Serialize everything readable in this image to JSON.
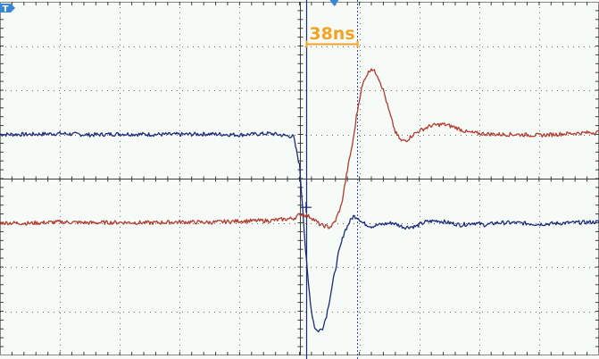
{
  "chart_data": {
    "type": "line",
    "title": "",
    "xlabel": "",
    "ylabel": "",
    "grid": true,
    "x_divisions": 10,
    "y_divisions": 8,
    "xlim": [
      0,
      10
    ],
    "ylim": [
      -4,
      4
    ],
    "measurement": {
      "label": "38ns",
      "cursor_a": 5.11,
      "cursor_b": 5.96,
      "color": "#f2a224"
    },
    "trigger_position": 5.58,
    "trigger_level": -0.7,
    "colors": {
      "ch1": "#1c2a7a",
      "ch2": "#b23a2e",
      "grid": "#3b3b3b",
      "cursor_a": "#1c2a7a",
      "cursor_b": "#3344cc",
      "marker": "#3a86d6",
      "background": "#f6fbf8"
    },
    "series": [
      {
        "id": "ch1",
        "x": [
          0,
          0.5,
          1,
          1.5,
          2,
          2.5,
          3,
          3.5,
          4,
          4.5,
          4.9,
          5.0,
          5.05,
          5.1,
          5.15,
          5.2,
          5.25,
          5.3,
          5.38,
          5.45,
          5.55,
          5.65,
          5.75,
          5.85,
          5.9,
          5.98,
          6.05,
          6.2,
          6.35,
          6.55,
          6.75,
          6.95,
          7.1,
          7.3,
          7.5,
          7.7,
          7.9,
          8.1,
          8.3,
          8.6,
          9.0,
          9.5,
          10
        ],
        "values": [
          1.0,
          1.0,
          1.02,
          0.99,
          1.01,
          1.0,
          1.0,
          1.01,
          0.99,
          1.02,
          0.95,
          0.3,
          -0.6,
          -1.6,
          -2.4,
          -3.0,
          -3.35,
          -3.45,
          -3.4,
          -3.1,
          -2.4,
          -1.7,
          -1.2,
          -0.95,
          -0.85,
          -0.88,
          -1.0,
          -1.08,
          -1.04,
          -1.0,
          -1.1,
          -1.08,
          -0.98,
          -0.95,
          -1.0,
          -1.05,
          -1.0,
          -1.05,
          -1.0,
          -1.0,
          -1.03,
          -1.0,
          -0.98
        ]
      },
      {
        "id": "ch2",
        "x": [
          0,
          0.5,
          1,
          1.5,
          2,
          2.5,
          3,
          3.5,
          4,
          4.5,
          4.9,
          5.0,
          5.05,
          5.2,
          5.35,
          5.5,
          5.55,
          5.6,
          5.7,
          5.8,
          5.9,
          5.95,
          6.0,
          6.05,
          6.1,
          6.2,
          6.3,
          6.4,
          6.5,
          6.6,
          6.7,
          6.8,
          6.9,
          7.0,
          7.2,
          7.4,
          7.6,
          7.8,
          8.0,
          8.3,
          8.6,
          9.0,
          9.5,
          10
        ],
        "values": [
          -1.0,
          -1.01,
          -0.98,
          -1.0,
          -0.99,
          -1.0,
          -0.98,
          -0.99,
          -0.96,
          -0.95,
          -0.9,
          -0.82,
          -0.8,
          -0.88,
          -1.05,
          -1.1,
          -1.05,
          -0.95,
          -0.6,
          0.2,
          0.9,
          1.4,
          1.8,
          2.1,
          2.3,
          2.5,
          2.35,
          2.0,
          1.5,
          1.05,
          0.85,
          0.88,
          1.0,
          1.08,
          1.2,
          1.23,
          1.16,
          1.05,
          1.02,
          1.0,
          1.0,
          0.98,
          1.02,
          1.05
        ]
      }
    ]
  }
}
